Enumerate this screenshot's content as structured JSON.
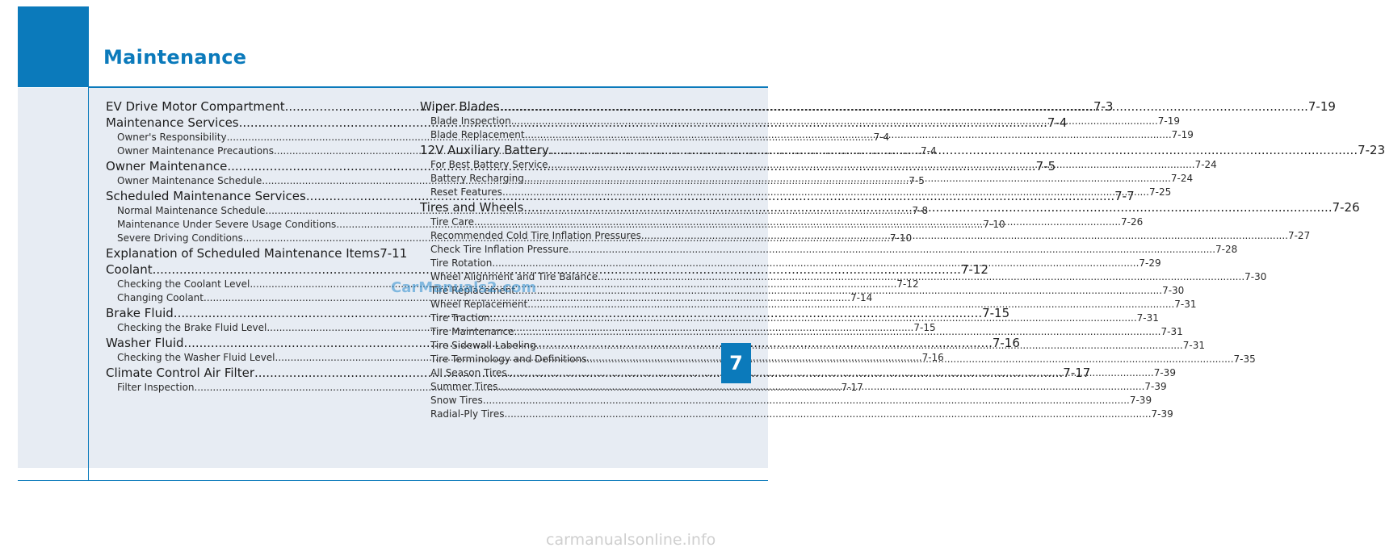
{
  "title": "Maintenance",
  "chapter_tab": "7",
  "left_column": [
    {
      "label": "EV Drive Motor Compartment",
      "page": "7-3",
      "level": 1
    },
    {
      "label": "Maintenance Services",
      "page": "7-4",
      "level": 1
    },
    {
      "label": "Owner's Responsibility",
      "page": "7-4",
      "level": 2
    },
    {
      "label": "Owner Maintenance Precautions",
      "page": "7-4",
      "level": 2
    },
    {
      "label": "Owner Maintenance",
      "page": "7-5",
      "level": 1
    },
    {
      "label": "Owner Maintenance Schedule",
      "page": "7-5",
      "level": 2
    },
    {
      "label": "Scheduled Maintenance Services",
      "page": "7-7",
      "level": 1
    },
    {
      "label": "Normal Maintenance Schedule",
      "page": "7-8",
      "level": 2
    },
    {
      "label": "Maintenance Under Severe Usage Conditions",
      "page": "7-10",
      "level": 2
    },
    {
      "label": "Severe Driving Conditions",
      "page": "7-10",
      "level": 2
    },
    {
      "label": "Explanation of Scheduled Maintenance Items",
      "page": "7-11",
      "level": 1
    },
    {
      "label": "Coolant",
      "page": "7-12",
      "level": 1
    },
    {
      "label": "Checking the Coolant Level",
      "page": "7-12",
      "level": 2
    },
    {
      "label": "Changing Coolant",
      "page": "7-14",
      "level": 2
    },
    {
      "label": "Brake Fluid",
      "page": "7-15",
      "level": 1
    },
    {
      "label": "Checking the Brake Fluid Level",
      "page": "7-15",
      "level": 2
    },
    {
      "label": "Washer Fluid",
      "page": "7-16",
      "level": 1
    },
    {
      "label": "Checking the Washer Fluid Level",
      "page": "7-16",
      "level": 2
    },
    {
      "label": "Climate Control Air Filter",
      "page": "7-17",
      "level": 1
    },
    {
      "label": "Filter Inspection",
      "page": "7-17",
      "level": 2
    }
  ],
  "right_column": [
    {
      "label": "Wiper Blades",
      "page": "7-19",
      "level": 1
    },
    {
      "label": "Blade Inspection",
      "page": "7-19",
      "level": 2
    },
    {
      "label": "Blade Replacement",
      "page": "7-19",
      "level": 2
    },
    {
      "label": "12V Auxiliary Battery",
      "page": "7-23",
      "level": 1
    },
    {
      "label": "For Best Battery Service",
      "page": "7-24",
      "level": 2
    },
    {
      "label": "Battery Recharging",
      "page": "7-24",
      "level": 2
    },
    {
      "label": "Reset Features",
      "page": "7-25",
      "level": 2
    },
    {
      "label": "Tires and Wheels",
      "page": "7-26",
      "level": 1
    },
    {
      "label": "Tire Care",
      "page": "7-26",
      "level": 2
    },
    {
      "label": "Recommended Cold Tire Inflation Pressures",
      "page": "7-27",
      "level": 2
    },
    {
      "label": "Check Tire Inflation Pressure",
      "page": "7-28",
      "level": 2
    },
    {
      "label": "Tire Rotation",
      "page": "7-29",
      "level": 2
    },
    {
      "label": "Wheel Alignment and Tire Balance",
      "page": "7-30",
      "level": 2
    },
    {
      "label": "Tire Replacement",
      "page": "7-30",
      "level": 2
    },
    {
      "label": "Wheel Replacement",
      "page": "7-31",
      "level": 2
    },
    {
      "label": "Tire Traction",
      "page": "7-31",
      "level": 2
    },
    {
      "label": "Tire Maintenance",
      "page": "7-31",
      "level": 2
    },
    {
      "label": "Tire Sidewall Labeling",
      "page": "7-31",
      "level": 2
    },
    {
      "label": "Tire Terminology and Definitions",
      "page": "7-35",
      "level": 2
    },
    {
      "label": "All Season Tires",
      "page": "7-39",
      "level": 2
    },
    {
      "label": "Summer Tires",
      "page": "7-39",
      "level": 2
    },
    {
      "label": "Snow Tires",
      "page": "7-39",
      "level": 2
    },
    {
      "label": "Radial-Ply Tires",
      "page": "7-39",
      "level": 2
    }
  ],
  "watermark": "CarManuals2.com",
  "footer_watermark": "carmanualsonline.info",
  "colors": {
    "accent": "#0b7abb",
    "content_bg": "#e7ecf3"
  }
}
